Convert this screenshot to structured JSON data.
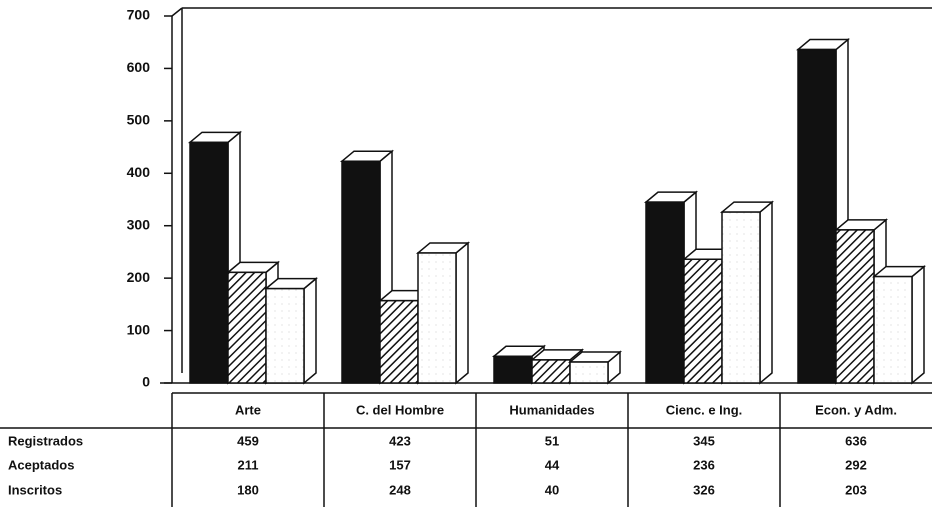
{
  "chart_data": {
    "type": "bar",
    "categories": [
      "Arte",
      "C. del Hombre",
      "Humanidades",
      "Cienc. e Ing.",
      "Econ. y Adm."
    ],
    "series": [
      {
        "name": "Registrados",
        "color": "#111111",
        "values": [
          459,
          423,
          51,
          345,
          636
        ]
      },
      {
        "name": "Aceptados",
        "color": "hatch",
        "values": [
          211,
          157,
          44,
          236,
          292
        ]
      },
      {
        "name": "Inscritos",
        "color": "#ffffff",
        "values": [
          180,
          248,
          40,
          326,
          203
        ]
      }
    ],
    "ylim": [
      0,
      700
    ],
    "yticks": [
      0,
      100,
      200,
      300,
      400,
      500,
      600,
      700
    ]
  }
}
